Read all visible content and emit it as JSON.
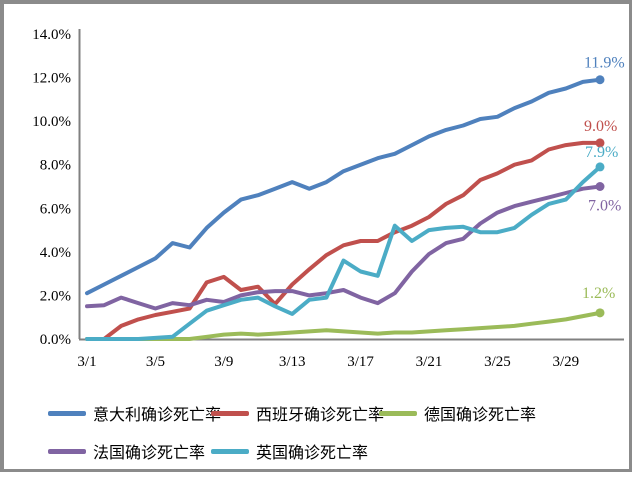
{
  "chart_data": {
    "type": "line",
    "title": "",
    "xlabel": "",
    "ylabel": "",
    "grid": false,
    "legend_position": "bottom",
    "ylim": [
      0,
      14
    ],
    "y_unit": "%",
    "y_tick_labels": [
      "0.0%",
      "2.0%",
      "4.0%",
      "6.0%",
      "8.0%",
      "10.0%",
      "12.0%",
      "14.0%"
    ],
    "x_tick_labels": [
      "3/1",
      "3/5",
      "3/9",
      "3/13",
      "3/17",
      "3/21",
      "3/25",
      "3/29"
    ],
    "x": [
      "3/1",
      "3/2",
      "3/3",
      "3/4",
      "3/5",
      "3/6",
      "3/7",
      "3/8",
      "3/9",
      "3/10",
      "3/11",
      "3/12",
      "3/13",
      "3/14",
      "3/15",
      "3/16",
      "3/17",
      "3/18",
      "3/19",
      "3/20",
      "3/21",
      "3/22",
      "3/23",
      "3/24",
      "3/25",
      "3/26",
      "3/27",
      "3/28",
      "3/29",
      "3/30",
      "3/31"
    ],
    "series": [
      {
        "name": "意大利确诊死亡率",
        "color": "#4F81BD",
        "end_label": "11.9%",
        "values": [
          2.1,
          2.5,
          2.9,
          3.3,
          3.7,
          4.4,
          4.2,
          5.1,
          5.8,
          6.4,
          6.6,
          6.9,
          7.2,
          6.9,
          7.2,
          7.7,
          8.0,
          8.3,
          8.5,
          8.9,
          9.3,
          9.6,
          9.8,
          10.1,
          10.2,
          10.6,
          10.9,
          11.3,
          11.5,
          11.8,
          11.9
        ]
      },
      {
        "name": "西班牙确诊死亡率",
        "color": "#C0504D",
        "end_label": "9.0%",
        "values": [
          0.0,
          0.0,
          0.6,
          0.9,
          1.1,
          1.25,
          1.4,
          2.6,
          2.85,
          2.25,
          2.4,
          1.6,
          2.5,
          3.2,
          3.85,
          4.3,
          4.5,
          4.5,
          4.9,
          5.2,
          5.6,
          6.2,
          6.6,
          7.3,
          7.6,
          8.0,
          8.2,
          8.7,
          8.9,
          9.0,
          9.0
        ]
      },
      {
        "name": "德国确诊死亡率",
        "color": "#9BBB59",
        "end_label": "1.2%",
        "values": [
          0.0,
          0.0,
          0.0,
          0.0,
          0.0,
          0.0,
          0.0,
          0.1,
          0.2,
          0.25,
          0.2,
          0.25,
          0.3,
          0.35,
          0.4,
          0.35,
          0.3,
          0.25,
          0.3,
          0.3,
          0.35,
          0.4,
          0.45,
          0.5,
          0.55,
          0.6,
          0.7,
          0.8,
          0.9,
          1.05,
          1.2
        ]
      },
      {
        "name": "法国确诊死亡率",
        "color": "#8064A2",
        "end_label": "7.0%",
        "values": [
          1.5,
          1.55,
          1.9,
          1.65,
          1.4,
          1.65,
          1.55,
          1.8,
          1.7,
          2.0,
          2.15,
          2.2,
          2.2,
          2.0,
          2.1,
          2.25,
          1.9,
          1.65,
          2.1,
          3.1,
          3.9,
          4.4,
          4.6,
          5.3,
          5.8,
          6.1,
          6.3,
          6.5,
          6.7,
          6.9,
          7.0
        ]
      },
      {
        "name": "英国确诊死亡率",
        "color": "#4BACC6",
        "end_label": "7.9%",
        "values": [
          0.0,
          0.0,
          0.0,
          0.0,
          0.05,
          0.1,
          0.7,
          1.3,
          1.55,
          1.8,
          1.9,
          1.5,
          1.15,
          1.8,
          1.9,
          3.6,
          3.1,
          2.9,
          5.2,
          4.5,
          5.0,
          5.1,
          5.15,
          4.9,
          4.9,
          5.1,
          5.7,
          6.2,
          6.4,
          7.2,
          7.9
        ]
      }
    ],
    "axis_color": "#808080"
  }
}
